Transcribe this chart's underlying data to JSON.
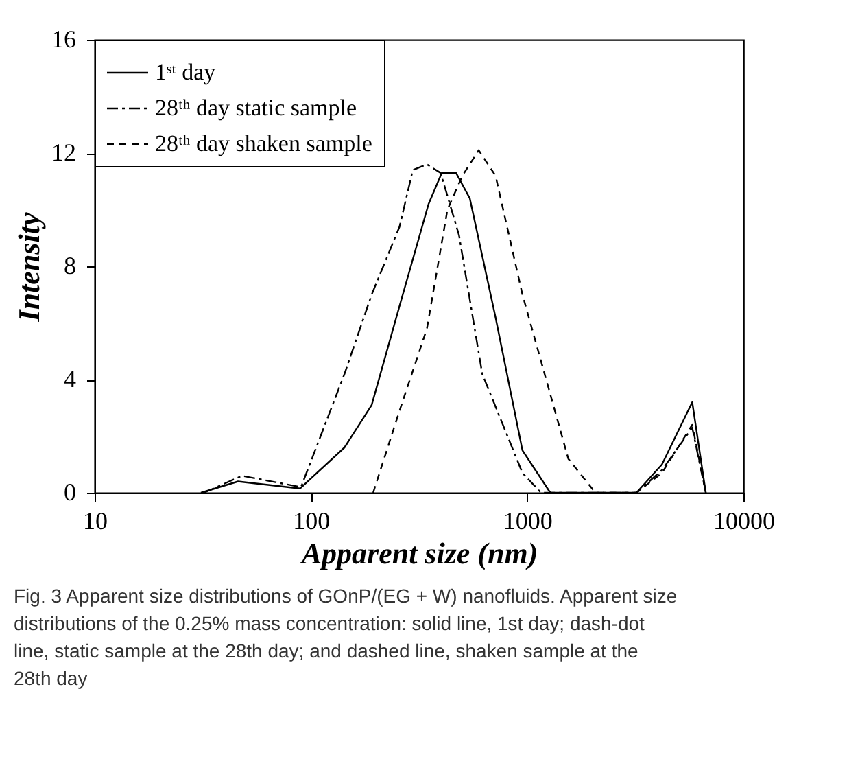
{
  "chart_data": {
    "type": "line",
    "xlabel": "Apparent size (nm)",
    "ylabel": "Intensity",
    "log": "x",
    "xlim": [
      10,
      10000
    ],
    "xticks": [
      10,
      100,
      1000,
      10000
    ],
    "ylim": [
      0,
      16
    ],
    "yticks": [
      0,
      4,
      8,
      12,
      16
    ],
    "grid": false,
    "legend": "top left",
    "marker": "none",
    "series": [
      {
        "name": "1ˢᵗ day",
        "color": "#000000",
        "line_style": "solid",
        "x": [
          31,
          46,
          89,
          143,
          191,
          257,
          350,
          403,
          469,
          543,
          714,
          951,
          1280,
          3200,
          4200,
          5800,
          6700
        ],
        "values": [
          0,
          0.4,
          0.15,
          1.6,
          3.1,
          6.6,
          10.2,
          11.3,
          11.3,
          10.4,
          6.2,
          1.5,
          0,
          0,
          1.0,
          3.2,
          0
        ]
      },
      {
        "name": "28ᵗʰ day static sample",
        "color": "#000000",
        "line_style": "dashdot",
        "x": [
          32,
          48,
          90,
          143,
          191,
          257,
          296,
          344,
          398,
          484,
          620,
          951,
          1160,
          3200,
          4200,
          5800,
          6700
        ],
        "values": [
          0,
          0.6,
          0.2,
          4.2,
          7.0,
          9.4,
          11.4,
          11.6,
          11.3,
          9.1,
          4.2,
          0.7,
          0,
          0,
          0.8,
          2.3,
          0
        ]
      },
      {
        "name": "28ᵗʰ day shaken sample",
        "color": "#000000",
        "line_style": "dashed",
        "x": [
          194,
          257,
          344,
          428,
          502,
          597,
          714,
          951,
          1550,
          2070,
          3200,
          4200,
          5800,
          6700
        ],
        "values": [
          0,
          2.9,
          5.8,
          10.0,
          11.2,
          12.1,
          11.2,
          7.0,
          1.2,
          0,
          0,
          0.7,
          2.4,
          0
        ]
      }
    ],
    "annotations": [
      "Fig. 3 Apparent size distributions of GOnP/(EG + W) nanofluids. Apparent size distributions of the 0.25% mass concentration: solid line, 1st day; dash-dot line, static sample at the 28th day; and dashed line, shaken sample at the 28th day"
    ]
  }
}
